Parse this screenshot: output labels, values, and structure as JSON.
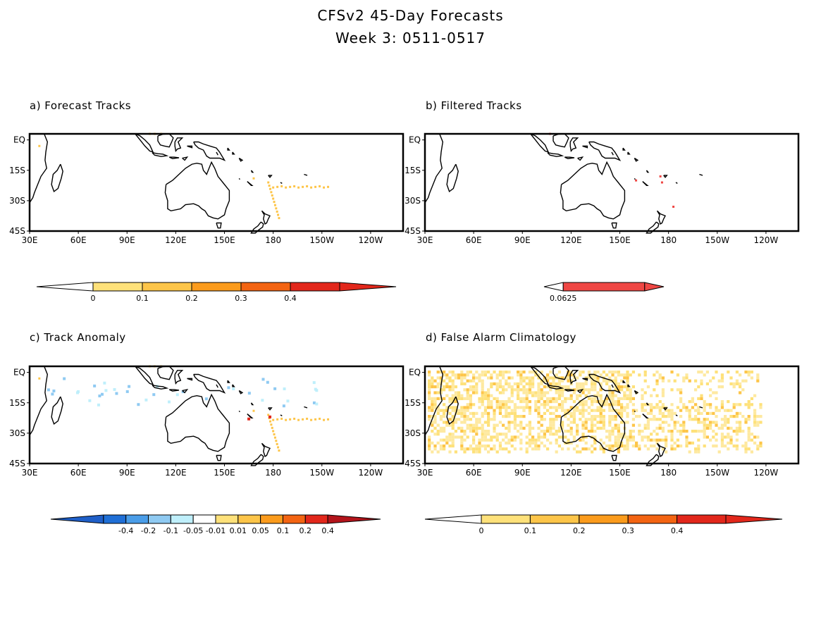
{
  "header": {
    "title": "CFSv2 45-Day Forecasts",
    "subtitle": "Week 3: 0511-0517"
  },
  "lon_labels": [
    "30E",
    "60E",
    "90E",
    "120E",
    "150E",
    "180",
    "150W",
    "120W"
  ],
  "lat_labels": [
    "EQ",
    "15S",
    "30S",
    "45S"
  ],
  "colors": {
    "land_outline": "#000000",
    "yellow_light": "#fee17a",
    "yellow": "#fdc549",
    "orange": "#fb9b1c",
    "dark_orange": "#f36412",
    "red": "#e2271b",
    "blue_dark": "#1f6fd6",
    "blue": "#4a9de8",
    "blue_light": "#8fcaf2",
    "cyan_light": "#bfeffb"
  },
  "panels": [
    {
      "id": "a",
      "label": "a) Forecast Tracks",
      "colorbar": {
        "labels": [
          "0",
          "0.1",
          "0.2",
          "0.3",
          "0.4"
        ],
        "colors": [
          "#fee17a",
          "#fdc549",
          "#fb9b1c",
          "#f36412",
          "#e2271b"
        ]
      }
    },
    {
      "id": "b",
      "label": "b) Filtered Tracks",
      "colorbar": {
        "labels": [
          "0.0625"
        ],
        "colors": [
          "#ef4744"
        ]
      }
    },
    {
      "id": "c",
      "label": "c) Track Anomaly",
      "colorbar": {
        "labels": [
          "-0.4",
          "-0.2",
          "-0.1",
          "-0.05",
          "-0.01",
          "0.01",
          "0.05",
          "0.1",
          "0.2",
          "0.4"
        ],
        "colors": [
          "#1f6fd6",
          "#4a9de8",
          "#8fcaf2",
          "#bfeffb",
          "#ffffff",
          "#fee17a",
          "#fdc549",
          "#fb9b1c",
          "#f36412",
          "#e2271b"
        ]
      }
    },
    {
      "id": "d",
      "label": "d) False Alarm Climatology",
      "colorbar": {
        "labels": [
          "0",
          "0.1",
          "0.2",
          "0.3",
          "0.4"
        ],
        "colors": [
          "#fee17a",
          "#fdc549",
          "#fb9b1c",
          "#f36412",
          "#e2271b"
        ]
      }
    }
  ]
}
